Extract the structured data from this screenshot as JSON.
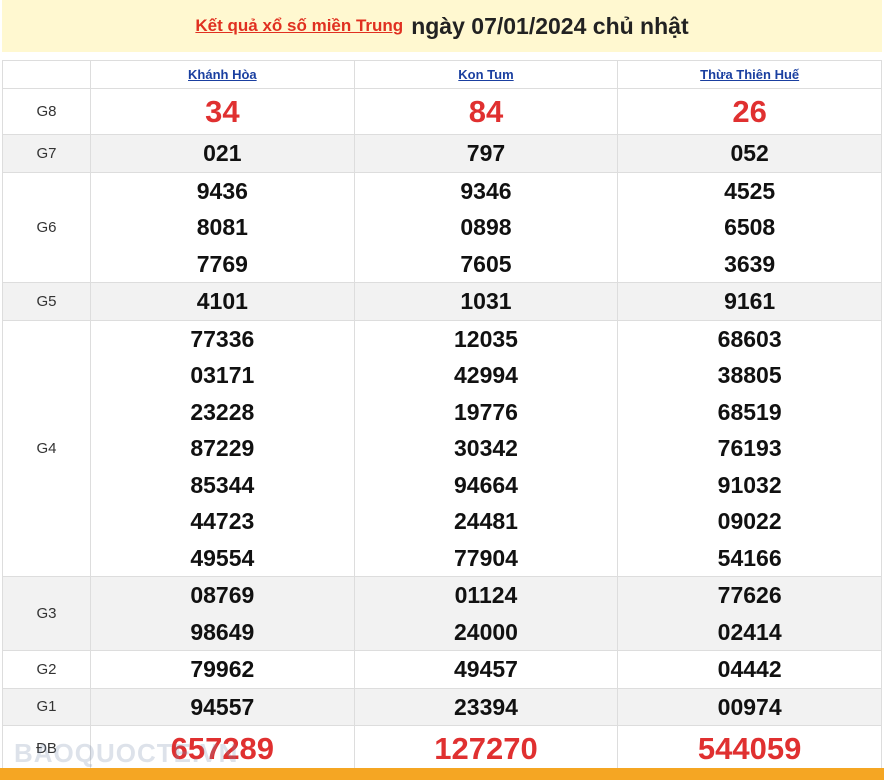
{
  "header": {
    "link": "Kết quả xổ số miền Trung",
    "date": "ngày 07/01/2024 chủ nhật"
  },
  "table": {
    "columns": [
      "Khánh Hòa",
      "Kon Tum",
      "Thừa Thiên Huế"
    ],
    "rows": [
      {
        "label": "G8",
        "cells": [
          [
            "34"
          ],
          [
            "84"
          ],
          [
            "26"
          ]
        ]
      },
      {
        "label": "G7",
        "cells": [
          [
            "021"
          ],
          [
            "797"
          ],
          [
            "052"
          ]
        ]
      },
      {
        "label": "G6",
        "cells": [
          [
            "9436",
            "8081",
            "7769"
          ],
          [
            "9346",
            "0898",
            "7605"
          ],
          [
            "4525",
            "6508",
            "3639"
          ]
        ]
      },
      {
        "label": "G5",
        "cells": [
          [
            "4101"
          ],
          [
            "1031"
          ],
          [
            "9161"
          ]
        ]
      },
      {
        "label": "G4",
        "cells": [
          [
            "77336",
            "03171",
            "23228",
            "87229",
            "85344",
            "44723",
            "49554"
          ],
          [
            "12035",
            "42994",
            "19776",
            "30342",
            "94664",
            "24481",
            "77904"
          ],
          [
            "68603",
            "38805",
            "68519",
            "76193",
            "91032",
            "09022",
            "54166"
          ]
        ]
      },
      {
        "label": "G3",
        "cells": [
          [
            "08769",
            "98649"
          ],
          [
            "01124",
            "24000"
          ],
          [
            "77626",
            "02414"
          ]
        ]
      },
      {
        "label": "G2",
        "cells": [
          [
            "79962"
          ],
          [
            "49457"
          ],
          [
            "04442"
          ]
        ]
      },
      {
        "label": "G1",
        "cells": [
          [
            "94557"
          ],
          [
            "23394"
          ],
          [
            "00974"
          ]
        ]
      },
      {
        "label": "ĐB",
        "cells": [
          [
            "657289"
          ],
          [
            "127270"
          ],
          [
            "544059"
          ]
        ]
      }
    ]
  },
  "watermark": "BAOQUOCTE.VN"
}
